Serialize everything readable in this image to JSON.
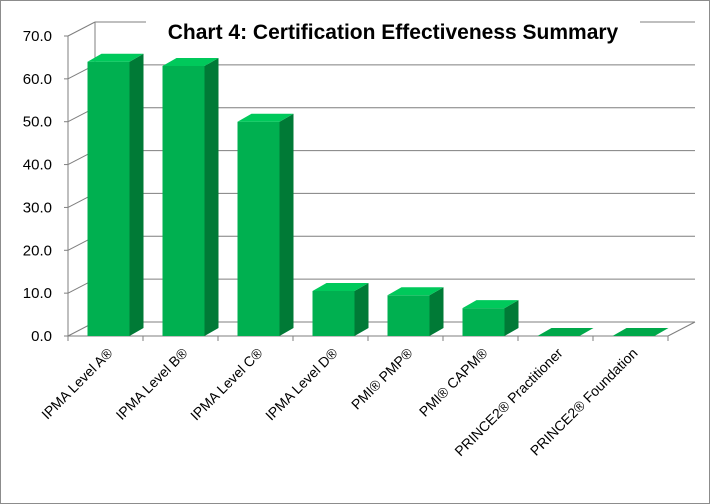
{
  "chart_data": {
    "type": "bar",
    "style": "3d-column",
    "title": "Chart 4: Certification Effectiveness Summary",
    "xlabel": "",
    "ylabel": "",
    "ylim": [
      0,
      70
    ],
    "yticks": [
      "0.0",
      "10.0",
      "20.0",
      "30.0",
      "40.0",
      "50.0",
      "60.0",
      "70.0"
    ],
    "grid": true,
    "legend": "none",
    "categories": [
      "IPMA Level A®",
      "IPMA Level B®",
      "IPMA Level C®",
      "IPMA Level D®",
      "PMI® PMP®",
      "PMI® CAPM®",
      "PRINCE2® Practitioner",
      "PRINCE2® Foundation"
    ],
    "values": [
      64,
      63,
      50,
      10.5,
      9.5,
      6.5,
      0,
      0
    ],
    "colors": {
      "front": "#00b050",
      "top": "#00c95b",
      "side": "#007a36"
    }
  }
}
